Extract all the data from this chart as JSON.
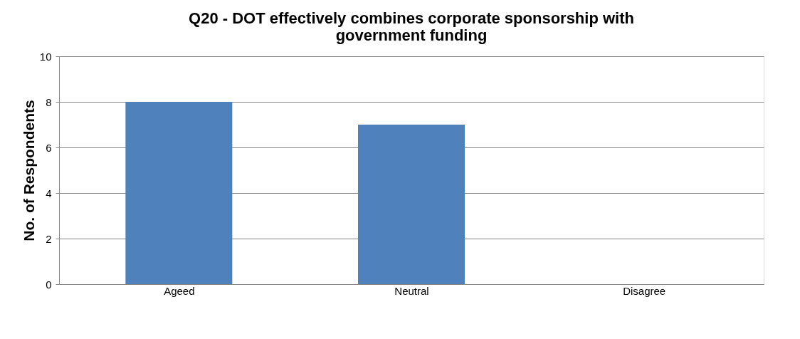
{
  "chart_data": {
    "type": "bar",
    "title": "Q20 - DOT effectively combines corporate sponsorship with government funding",
    "ylabel": "No. of Respondents",
    "categories": [
      "Ageed",
      "Neutral",
      "Disagree"
    ],
    "values": [
      8,
      7,
      0
    ],
    "color": "#4f81bd",
    "ylim": [
      0,
      10
    ],
    "yticks": [
      0,
      2,
      4,
      6,
      8,
      10
    ],
    "grid": "y"
  }
}
